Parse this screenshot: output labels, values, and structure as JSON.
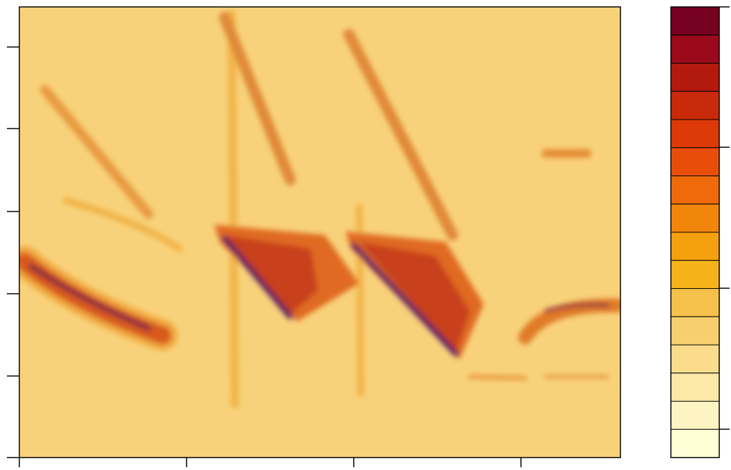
{
  "chart_data": {
    "type": "filled-contour",
    "colorbar_colors": [
      "#75001f",
      "#9a0a1a",
      "#b31a0e",
      "#c92a0a",
      "#dc3a08",
      "#e84e0a",
      "#ee6a0b",
      "#f2860d",
      "#f5a00f",
      "#f4b31a",
      "#f6c14a",
      "#f8cf6e",
      "#fadc8c",
      "#fce8a8",
      "#fef3c2",
      "#ffffd6"
    ]
  }
}
